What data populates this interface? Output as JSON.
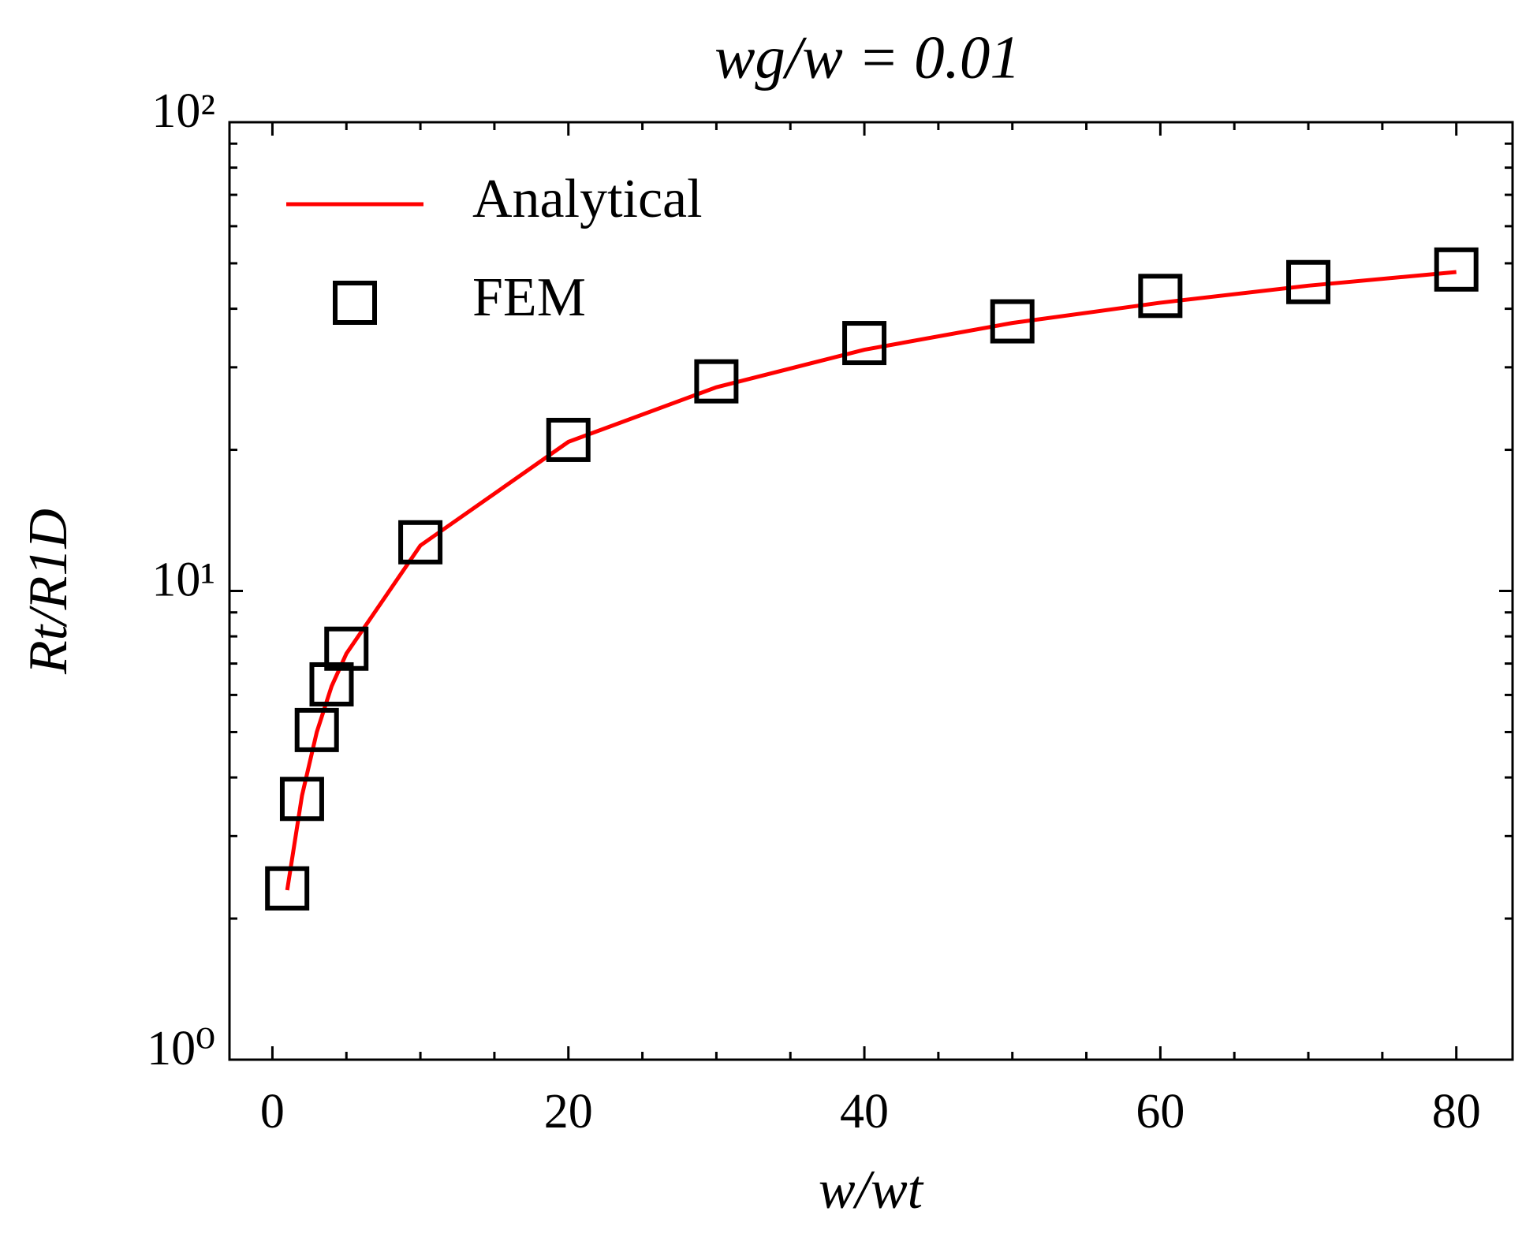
{
  "chart_data": {
    "type": "line",
    "title": "wg/w = 0.01",
    "x_label": "w/wt",
    "y_label": "Rt/R1D",
    "x": [
      1,
      2,
      3,
      4,
      5,
      10,
      20,
      30,
      40,
      50,
      60,
      70,
      80
    ],
    "series": [
      {
        "name": "Analytical",
        "color": "#ff0000",
        "style": "line",
        "values": [
          2.3,
          3.66,
          5.0,
          6.26,
          7.35,
          12.5,
          20.8,
          27.2,
          32.7,
          37.3,
          41.2,
          44.8,
          47.9
        ]
      },
      {
        "name": "FEM",
        "color": "#000000",
        "style": "square",
        "values": [
          2.32,
          3.6,
          5.05,
          6.32,
          7.53,
          12.7,
          21.0,
          28.0,
          33.8,
          37.6,
          42.6,
          45.6,
          48.5
        ]
      }
    ],
    "xlim": [
      -2.9,
      83.8
    ],
    "ylim": [
      1,
      100
    ],
    "log_y": true,
    "xticks": [
      0,
      20,
      40,
      60,
      80
    ],
    "x_minor_ticks": [
      5,
      10,
      15,
      25,
      30,
      35,
      45,
      50,
      55,
      65,
      70,
      75
    ],
    "yticks": [
      {
        "value": 1,
        "label": "10⁰"
      },
      {
        "value": 10,
        "label": "10¹"
      },
      {
        "value": 100,
        "label": "10²"
      }
    ],
    "y_minor_ticks": [
      2,
      3,
      4,
      5,
      6,
      7,
      8,
      9,
      20,
      30,
      40,
      50,
      60,
      70,
      80,
      90
    ],
    "legend": "upper left",
    "grid": false
  }
}
